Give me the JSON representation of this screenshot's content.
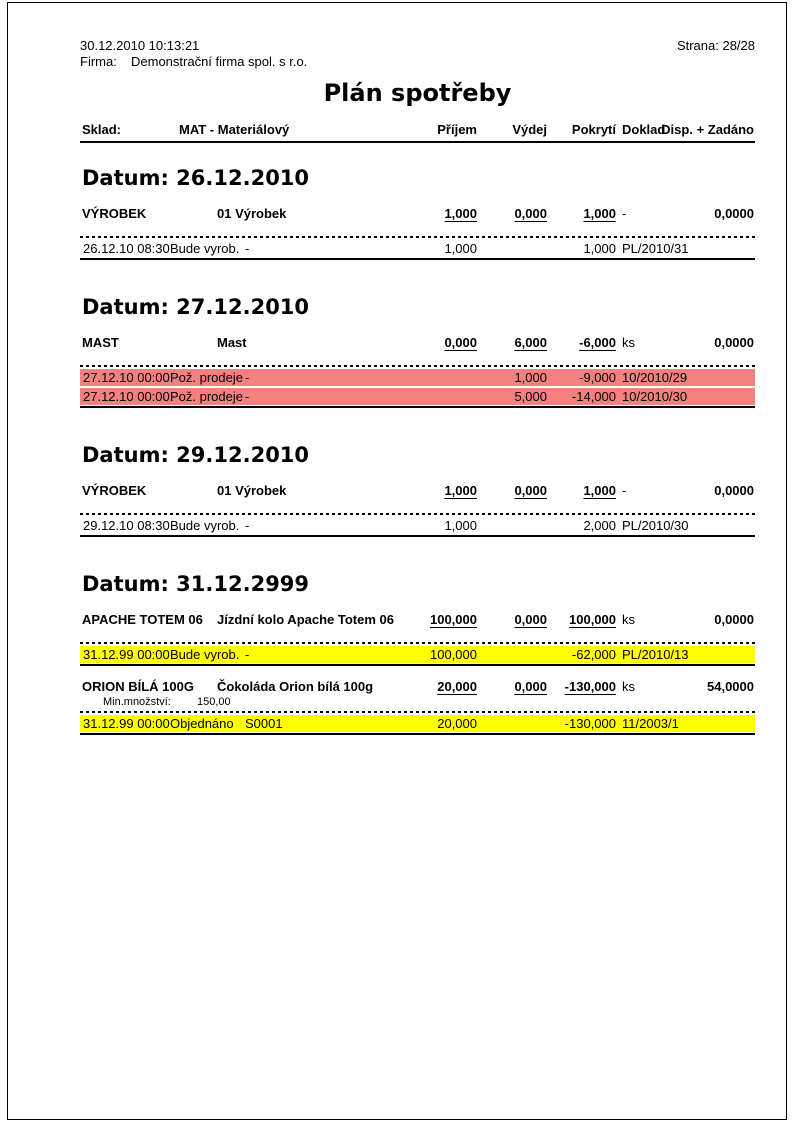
{
  "page": {
    "printed_at": "30.12.2010  10:13:21",
    "firma_label": "Firma:",
    "firma_value": "Demonstrační firma spol. s r.o.",
    "strana": "Strana: 28/28",
    "title": "Plán spotřeby"
  },
  "colors": {
    "highlight_red": "#F4807F",
    "highlight_yellow": "#FFFF00"
  },
  "table_header": {
    "sklad_label": "Sklad:",
    "sklad_value": "MAT - Materiálový",
    "col_prijem": "Příjem",
    "col_vydej": "Výdej",
    "col_pokryti": "Pokrytí",
    "col_doklad": "Doklad",
    "col_disp": "Disp. + Zadáno"
  },
  "sections": [
    {
      "heading": "Datum: 26.12.2010",
      "groups": [
        {
          "code": "VÝROBEK",
          "name": "01 Výrobek",
          "prijem": "1,000",
          "vydej": "0,000",
          "pokryti": "1,000",
          "unit": "-",
          "disp": "0,0000",
          "rows": [
            {
              "datetime": "26.12.10 08:30",
              "action": "Bude vyrob.",
              "ref": "-",
              "prijem": "1,000",
              "vydej": "",
              "pokryti": "1,000",
              "doklad": "PL/2010/31"
            }
          ]
        }
      ]
    },
    {
      "heading": "Datum: 27.12.2010",
      "groups": [
        {
          "code": "MAST",
          "name": "Mast",
          "prijem": "0,000",
          "vydej": "6,000",
          "pokryti": "-6,000",
          "unit": "ks",
          "disp": "0,0000",
          "rows": [
            {
              "datetime": "27.12.10 00:00",
              "action": "Pož. prodeje",
              "ref": "-",
              "prijem": "",
              "vydej": "1,000",
              "pokryti": "-9,000",
              "doklad": "10/2010/29"
            },
            {
              "datetime": "27.12.10 00:00",
              "action": "Pož. prodeje",
              "ref": "-",
              "prijem": "",
              "vydej": "5,000",
              "pokryti": "-14,000",
              "doklad": "10/2010/30"
            }
          ]
        }
      ]
    },
    {
      "heading": "Datum: 29.12.2010",
      "groups": [
        {
          "code": "VÝROBEK",
          "name": "01 Výrobek",
          "prijem": "1,000",
          "vydej": "0,000",
          "pokryti": "1,000",
          "unit": "-",
          "disp": "0,0000",
          "rows": [
            {
              "datetime": "29.12.10 08:30",
              "action": "Bude vyrob.",
              "ref": "-",
              "prijem": "1,000",
              "vydej": "",
              "pokryti": "2,000",
              "doklad": "PL/2010/30"
            }
          ]
        }
      ]
    },
    {
      "heading": "Datum: 31.12.2999",
      "groups": [
        {
          "code": "APACHE TOTEM 06",
          "name": "Jízdní kolo Apache Totem 06",
          "prijem": "100,000",
          "vydej": "0,000",
          "pokryti": "100,000",
          "unit": "ks",
          "disp": "0,0000",
          "rows": [
            {
              "datetime": "31.12.99 00:00",
              "action": "Bude vyrob.",
              "ref": "-",
              "prijem": "100,000",
              "vydej": "",
              "pokryti": "-62,000",
              "doklad": "PL/2010/13"
            }
          ]
        },
        {
          "code": "ORION BÍLÁ 100G",
          "name": "Čokoláda Orion bílá 100g",
          "prijem": "20,000",
          "vydej": "0,000",
          "pokryti": "-130,000",
          "unit": "ks",
          "disp": "54,0000",
          "min_label": "Min.množství:",
          "min_value": "150,00",
          "rows": [
            {
              "datetime": "31.12.99 00:00",
              "action": "Objednáno",
              "ref": "S0001",
              "prijem": "20,000",
              "vydej": "",
              "pokryti": "-130,000",
              "doklad": "11/2003/1"
            }
          ]
        }
      ]
    }
  ]
}
